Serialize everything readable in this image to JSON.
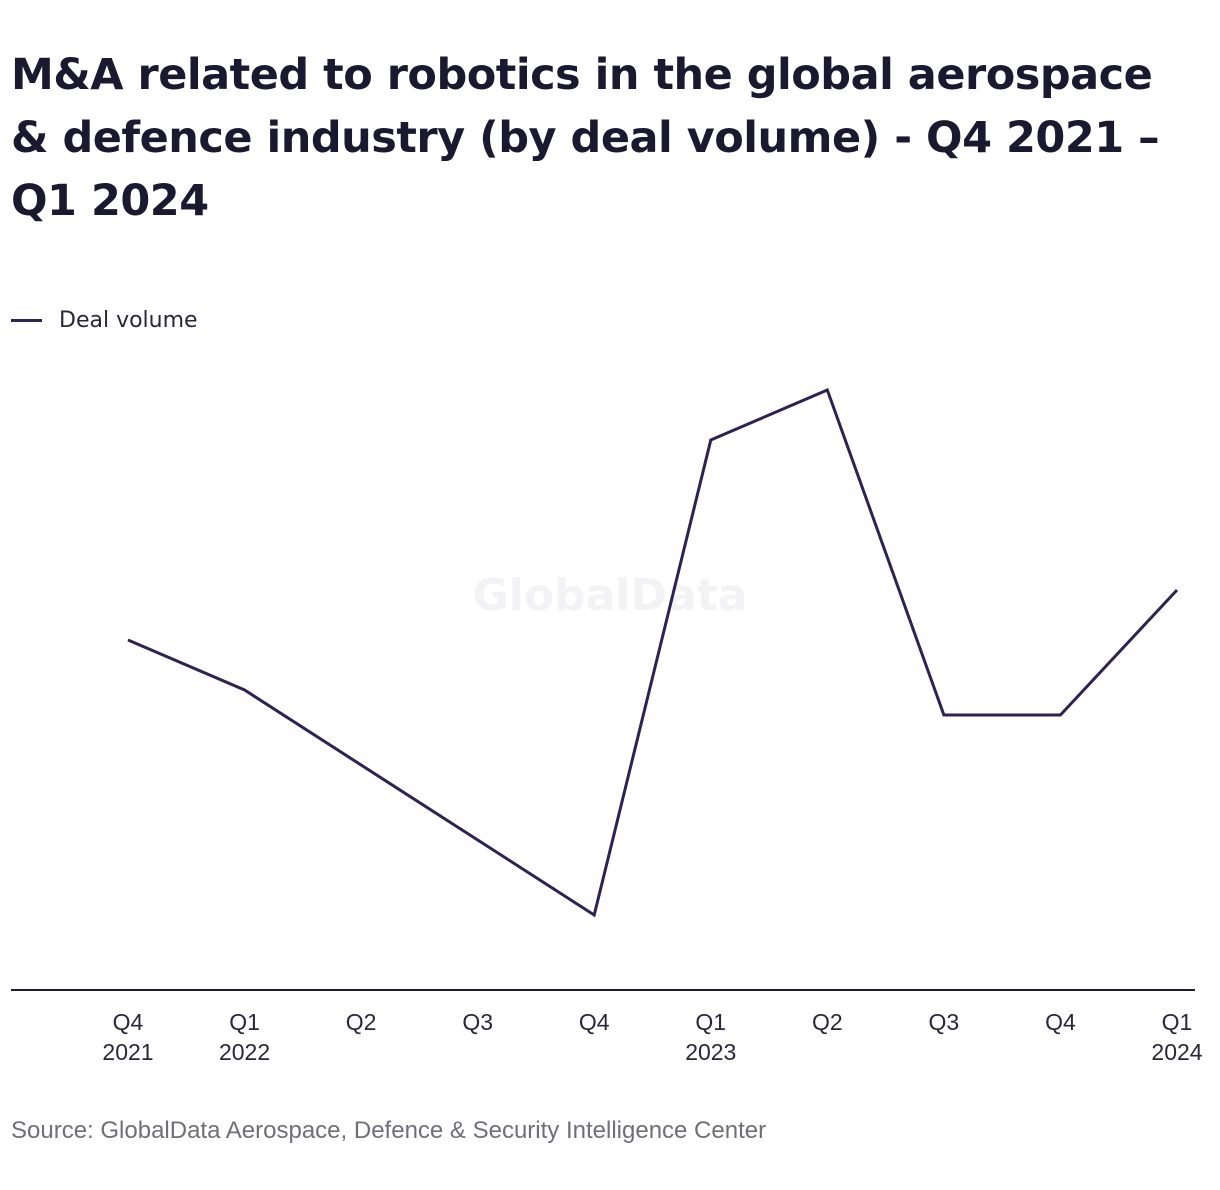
{
  "title": "M&A related to robotics in the global aerospace & defence industry (by deal volume) - Q4 2021 – Q1 2024",
  "watermark": "GlobalData",
  "source": "Source: GlobalData Aerospace, Defence & Security Intelligence Center",
  "colors": {
    "line": "#2e2250",
    "axis": "#1e1c33",
    "text": "#1b1930",
    "source": "#6f6f78"
  },
  "chart_data": {
    "type": "line",
    "title": "M&A related to robotics in the global aerospace & defence industry (by deal volume) - Q4 2021 – Q1 2024",
    "xlabel": "",
    "ylabel": "",
    "categories": [
      [
        "Q4",
        "2021"
      ],
      [
        "Q1",
        "2022"
      ],
      [
        "Q2",
        ""
      ],
      [
        "Q3",
        ""
      ],
      [
        "Q4",
        ""
      ],
      [
        "Q1",
        "2023"
      ],
      [
        "Q2",
        ""
      ],
      [
        "Q3",
        ""
      ],
      [
        "Q4",
        ""
      ],
      [
        "Q1",
        "2024"
      ]
    ],
    "series": [
      {
        "name": "Deal volume",
        "values": [
          7,
          6,
          4.5,
          3,
          1.5,
          11,
          12,
          5.5,
          5.5,
          8
        ]
      }
    ],
    "ylim": [
      0,
      14
    ],
    "y_axis_visible": false,
    "grid": false,
    "legend": "top-left"
  }
}
